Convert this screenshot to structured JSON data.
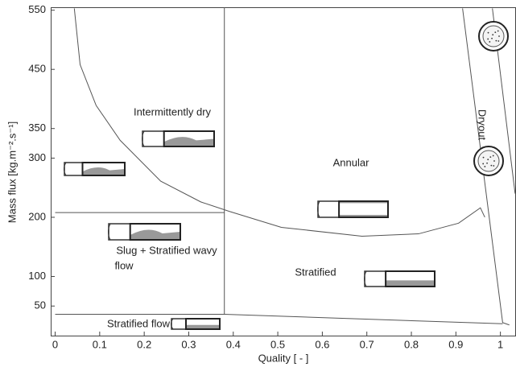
{
  "chart_data": {
    "type": "line",
    "xlabel": "Quality [ - ]",
    "ylabel": "Mass flux [kg.m⁻².s⁻¹]",
    "xlim": [
      -0.01,
      1.035
    ],
    "ylim": [
      0,
      555
    ],
    "xticks": [
      0,
      0.1,
      0.2,
      0.3,
      0.4,
      0.5,
      0.6,
      0.7,
      0.8,
      0.9,
      1
    ],
    "yticks": [
      50,
      100,
      200,
      300,
      350,
      450,
      550
    ],
    "series": [
      {
        "color": "#555555",
        "x": [
          0.043,
          0.056,
          0.092,
          0.146,
          0.237,
          0.327,
          0.391,
          0.508,
          0.689,
          0.816,
          0.906,
          0.955,
          0.965
        ],
        "values": [
          553,
          458,
          389,
          330,
          261,
          226,
          210,
          183,
          168,
          172,
          190,
          216,
          200
        ]
      },
      {
        "color": "#555555",
        "x": [
          0.38,
          0.38
        ],
        "values": [
          555,
          36
        ]
      },
      {
        "color": "#555555",
        "x": [
          0,
          0.38
        ],
        "values": [
          208,
          208
        ]
      },
      {
        "color": "#555555",
        "x": [
          0,
          0.38,
          1.005
        ],
        "values": [
          36,
          36,
          20
        ]
      },
      {
        "color": "#555555",
        "x": [
          0.915,
          1.005,
          1.02
        ],
        "values": [
          553,
          22,
          18
        ]
      },
      {
        "color": "#555555",
        "x": [
          0.982,
          1.033
        ],
        "values": [
          553,
          240
        ]
      }
    ],
    "annotations": [
      "Intermittently dry",
      "Annular",
      "Dryout",
      "Slug + Stratified wavy",
      "flow",
      "Stratified",
      "Stratified flow"
    ]
  }
}
